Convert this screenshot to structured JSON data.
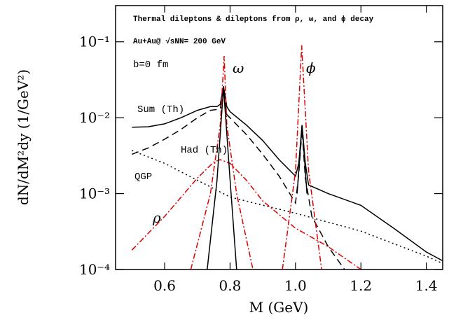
{
  "chart_data": {
    "type": "line",
    "title": "Thermal dileptons & dileptons from ρ, ω, and ϕ decay",
    "subtitle": "Au+Au@ √sNN= 200 GeV",
    "annotations": [
      "b=0 fm",
      "ω",
      "ϕ",
      "Sum (Th)",
      "Had (Th)",
      "QGP",
      "ρ"
    ],
    "x_label": "M (GeV)",
    "y_label": "dN/dM²dy (1/GeV²)",
    "xlim": [
      0.45,
      1.45
    ],
    "xticks": [
      0.6,
      0.8,
      {
        "value": 1.0,
        "label": "1.0"
      },
      1.2,
      1.4
    ],
    "ylim": [
      0.0001,
      0.3
    ],
    "yscale": "log",
    "yticks": [
      {
        "value": 0.0001,
        "label": "10⁻⁴"
      },
      {
        "value": 0.001,
        "label": "10⁻³"
      },
      {
        "value": 0.01,
        "label": "10⁻²"
      },
      {
        "value": 0.1,
        "label": "10⁻¹"
      }
    ],
    "series": [
      {
        "color": "#000000",
        "dash": "solid",
        "x": [
          0.5,
          0.55,
          0.6,
          0.65,
          0.7,
          0.74,
          0.76,
          0.77,
          0.78,
          0.79,
          0.8,
          0.85,
          0.9,
          0.95,
          1.0,
          1.01,
          1.02,
          1.03,
          1.04,
          1.1,
          1.2,
          1.3,
          1.4,
          1.45
        ],
        "values": [
          0.0075,
          0.0076,
          0.0083,
          0.01,
          0.0125,
          0.014,
          0.014,
          0.015,
          0.026,
          0.014,
          0.012,
          0.008,
          0.005,
          0.0028,
          0.0017,
          0.0025,
          0.008,
          0.0025,
          0.0013,
          0.001,
          0.0007,
          0.00035,
          0.00017,
          0.00013
        ]
      },
      {
        "color": "#000000",
        "dash": "dashed",
        "x": [
          0.5,
          0.55,
          0.6,
          0.65,
          0.7,
          0.74,
          0.77,
          0.78,
          0.79,
          0.85,
          0.9,
          0.95,
          1.0,
          1.01,
          1.02,
          1.03,
          1.05,
          1.1,
          1.15
        ],
        "values": [
          0.0033,
          0.004,
          0.0052,
          0.007,
          0.01,
          0.0125,
          0.013,
          0.024,
          0.011,
          0.006,
          0.0033,
          0.0017,
          0.00075,
          0.0018,
          0.007,
          0.0016,
          0.0005,
          0.0002,
          0.0001
        ]
      },
      {
        "color": "#000000",
        "dash": "dotted",
        "x": [
          0.5,
          0.6,
          0.8,
          1.0,
          1.2,
          1.4,
          1.45
        ],
        "values": [
          0.0037,
          0.0025,
          0.0009,
          0.00055,
          0.00032,
          0.00015,
          0.00012
        ]
      },
      {
        "color": "#dd0000",
        "dash": "dashdot",
        "x": [
          0.5,
          0.6,
          0.7,
          0.75,
          0.77,
          0.8,
          0.85,
          0.9,
          1.0,
          1.1,
          1.2
        ],
        "values": [
          0.00018,
          0.0005,
          0.0016,
          0.0026,
          0.0028,
          0.0025,
          0.0015,
          0.0008,
          0.00035,
          0.0002,
          0.0001
        ]
      },
      {
        "color": "#dd0000",
        "dash": "dashdot",
        "x": [
          0.68,
          0.74,
          0.77,
          0.782,
          0.79,
          0.82,
          0.87
        ],
        "values": [
          0.0001,
          0.001,
          0.008,
          0.065,
          0.008,
          0.001,
          0.0001
        ]
      },
      {
        "color": "#dd0000",
        "dash": "dashdot",
        "x": [
          0.96,
          1.0,
          1.019,
          1.04,
          1.08
        ],
        "values": [
          0.0001,
          0.002,
          0.09,
          0.002,
          0.0001
        ]
      },
      {
        "color": "#000000",
        "dash": "solid",
        "x": [
          0.73,
          0.76,
          0.78,
          0.8,
          0.82
        ],
        "values": [
          0.0001,
          0.0015,
          0.025,
          0.0015,
          0.0001
        ]
      },
      {
        "color": "#000000",
        "dash": "solid",
        "x": [
          1.005,
          1.02,
          1.035
        ],
        "values": [
          0.001,
          0.008,
          0.001
        ]
      }
    ]
  }
}
